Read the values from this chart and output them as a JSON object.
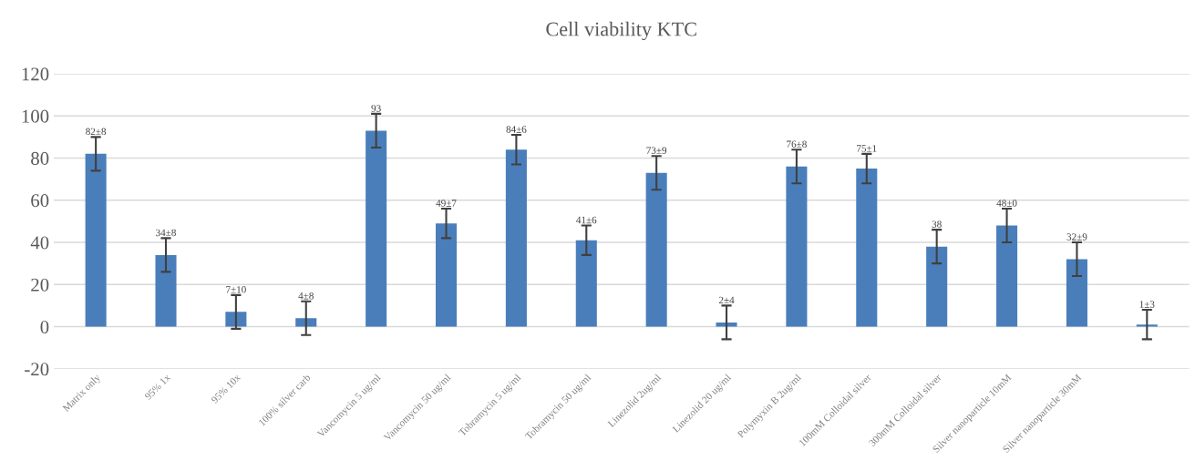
{
  "chart_data": {
    "type": "bar",
    "title": "Cell viability KTC",
    "categories": [
      "Matrix only",
      "95% 1x",
      "95% 10x",
      "100% silver carb",
      "Vancomycin 5 ug/ml",
      "Vancomycin 50 ug/ml",
      "Tobramycin 5 ug/ml",
      "Tobramycin 50 ug/ml",
      "Linezolid 2ug/ml",
      "Linezolid 20 ug/ml",
      "Polymyxin B 2ug/ml",
      "100mM Colloidal silver",
      "300mM Colloidal silver",
      "Silver nanoparticle 10mM",
      "Silver nanoparticle 30mM",
      null
    ],
    "values": [
      82,
      34,
      7,
      4,
      93,
      49,
      84,
      41,
      73,
      2,
      76,
      75,
      38,
      48,
      32,
      1
    ],
    "errors": [
      8,
      8,
      8,
      8,
      8,
      7,
      7,
      7,
      8,
      8,
      8,
      7,
      8,
      8,
      8,
      7
    ],
    "value_labels": [
      "82±8",
      "34±8",
      "7±10",
      "4±8",
      "93",
      "49±7",
      "84±6",
      "41±6",
      "73±9",
      "2±4",
      "76±8",
      "75±1",
      "38",
      "48±0",
      "32±9",
      "1±3"
    ],
    "color": "#4a7ebb",
    "ylim": [
      -20,
      120
    ],
    "yticks": [
      -20,
      0,
      20,
      40,
      60,
      80,
      100,
      120
    ],
    "grid": "y",
    "legend": false
  }
}
